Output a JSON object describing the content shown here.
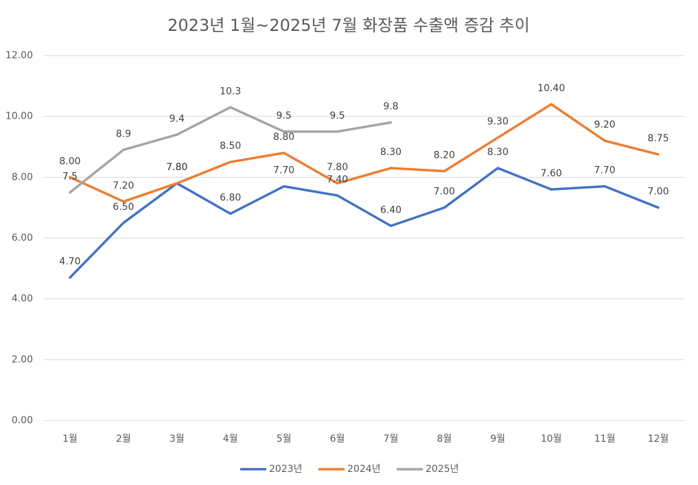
{
  "chart_data": {
    "type": "line",
    "title": "2023년 1월~2025년 7월 화장품 수출액 증감 추이",
    "categories": [
      "1월",
      "2월",
      "3월",
      "4월",
      "5월",
      "6월",
      "7월",
      "8월",
      "9월",
      "10월",
      "11월",
      "12월"
    ],
    "series": [
      {
        "name": "2023년",
        "color": "#4472c4",
        "values": [
          4.7,
          6.5,
          7.8,
          6.8,
          7.7,
          7.4,
          6.4,
          7.0,
          8.3,
          7.6,
          7.7,
          7.0
        ],
        "value_labels": [
          "4.70",
          "6.50",
          "7.80",
          "6.80",
          "7.70",
          "7.40",
          "6.40",
          "7.00",
          "8.30",
          "7.60",
          "7.70",
          "7.00"
        ]
      },
      {
        "name": "2024년",
        "color": "#ed7d31",
        "values": [
          8.0,
          7.2,
          7.8,
          8.5,
          8.8,
          7.8,
          8.3,
          8.2,
          9.3,
          10.4,
          9.2,
          8.75
        ],
        "value_labels": [
          "8.00",
          "7.20",
          "7.80",
          "8.50",
          "8.80",
          "7.80",
          "8.30",
          "8.20",
          "9.30",
          "10.40",
          "9.20",
          "8.75"
        ]
      },
      {
        "name": "2025년",
        "color": "#a5a5a5",
        "values": [
          7.5,
          8.9,
          9.4,
          10.3,
          9.5,
          9.5,
          9.8,
          null,
          null,
          null,
          null,
          null
        ]
      }
    ],
    "ylim": [
      0,
      12
    ],
    "yticks": [
      {
        "value": 0,
        "label": "0.00"
      },
      {
        "value": 2,
        "label": "2.00"
      },
      {
        "value": 4,
        "label": "4.00"
      },
      {
        "value": 6,
        "label": "6.00"
      },
      {
        "value": 8,
        "label": "8.00"
      },
      {
        "value": 10,
        "label": "10.00"
      },
      {
        "value": 12,
        "label": "12.00"
      }
    ],
    "grid": true,
    "legend": "bottom"
  }
}
